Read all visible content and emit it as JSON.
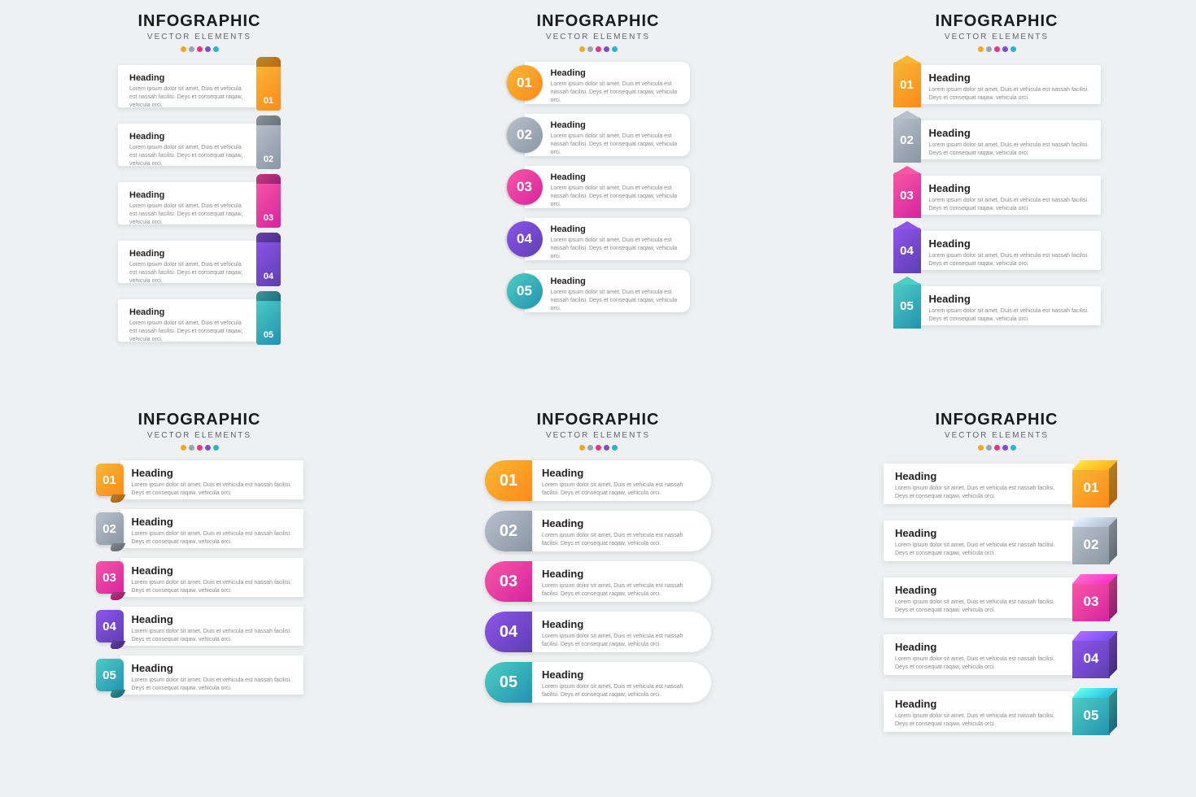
{
  "title": "INFOGRAPHIC",
  "subtitle": "VECTOR ELEMENTS",
  "dot_colors": [
    "#f5a623",
    "#9aa5b1",
    "#e6348b",
    "#7b4fc9",
    "#27b7cc"
  ],
  "numbers": [
    "01",
    "02",
    "03",
    "04",
    "05"
  ],
  "heading": "Heading",
  "body": "Lorem ipsum dolor sit amet, Duis et vehicula est nassah facilisi. Deys et consequat raqaw, vehicula orci.",
  "gradients": [
    {
      "from": "#f7b733",
      "to": "#fc8a1a"
    },
    {
      "from": "#b8c1cc",
      "to": "#8a96a3"
    },
    {
      "from": "#f857a6",
      "to": "#d6249f"
    },
    {
      "from": "#8e54e9",
      "to": "#5d3fb3"
    },
    {
      "from": "#4ecdc4",
      "to": "#2193b0"
    }
  ],
  "panels": {
    "A": {
      "style": "scroll-right"
    },
    "B": {
      "style": "circle"
    },
    "C": {
      "style": "bookmark-left"
    },
    "D": {
      "style": "curl-badge-left"
    },
    "E": {
      "style": "rounded-tab-left"
    },
    "F": {
      "style": "cube-right"
    }
  },
  "layout": {
    "cols": 3,
    "rows": 2,
    "items_per_panel": 5
  },
  "typography": {
    "title_fontsize": 20,
    "subtitle_fontsize": 10,
    "heading_fontsize": 13,
    "body_fontsize": 7,
    "number_fontsize": 17
  },
  "background_color": "#eef0f2",
  "card_bg": "#ffffff"
}
